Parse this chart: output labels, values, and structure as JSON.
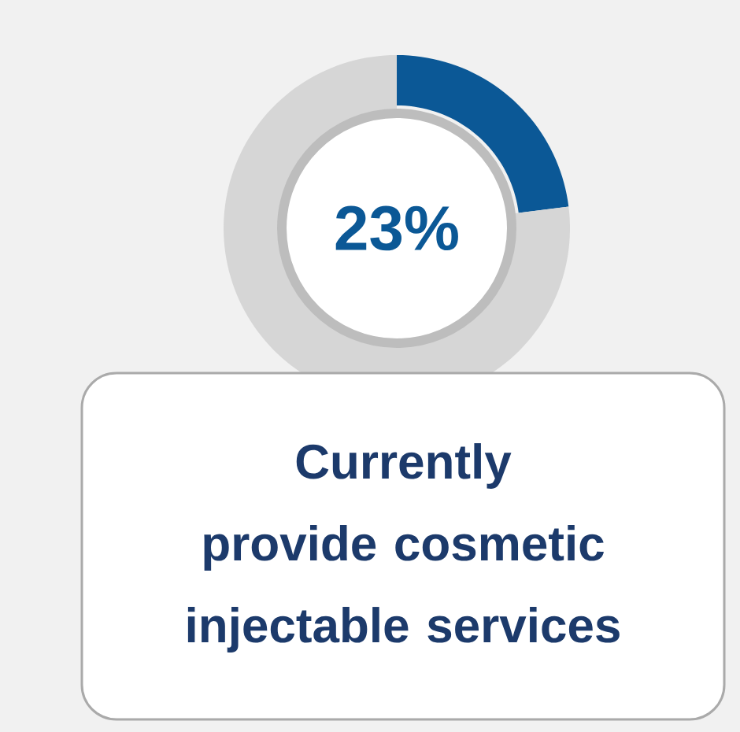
{
  "chart_data": {
    "type": "donut",
    "title": "Currently provide cosmetic injectable services",
    "categories": [
      null,
      null
    ],
    "values": [
      23,
      77
    ],
    "colors": [
      "#0b5896",
      "#d6d6d6"
    ],
    "value_labels": [
      "23%",
      null
    ]
  }
}
